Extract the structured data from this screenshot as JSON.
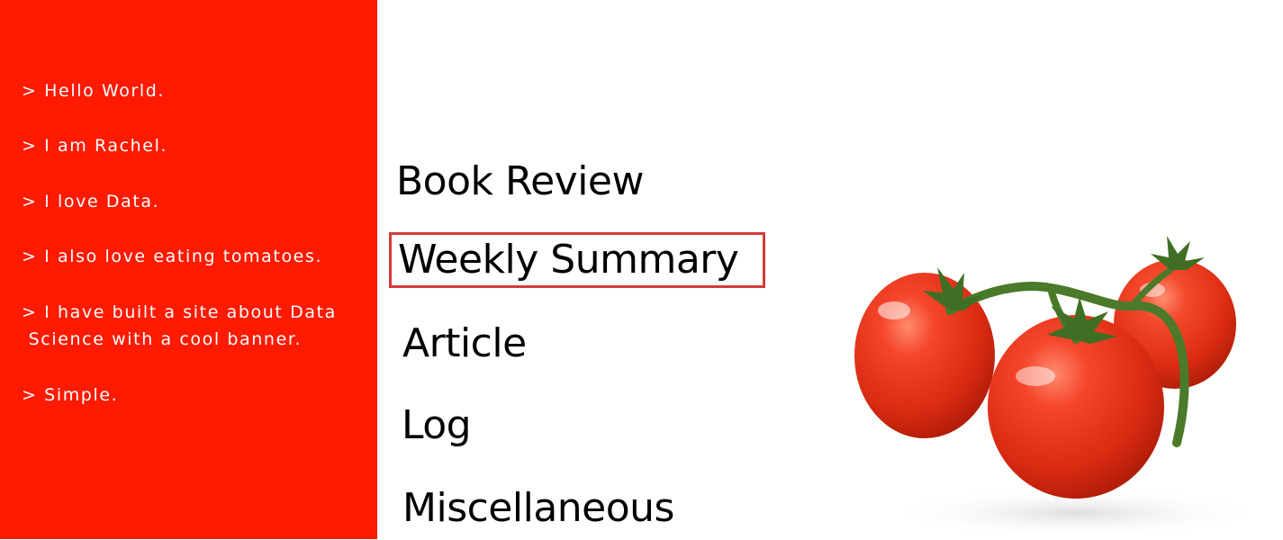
{
  "intro": {
    "lines": [
      "> Hello World.",
      "> I am Rachel.",
      "> I love Data.",
      "> I also love eating tomatoes.",
      "> I have built a site about Data\n Science with a cool banner.",
      "> Simple."
    ]
  },
  "nav": {
    "items": [
      {
        "label": "Book Review"
      },
      {
        "label": "Weekly Summary"
      },
      {
        "label": "Article"
      },
      {
        "label": "Log"
      },
      {
        "label": "Miscellaneous"
      }
    ],
    "highlighted_index": 1
  },
  "image": {
    "icon": "tomatoes-on-vine-image"
  },
  "colors": {
    "panel_red": "#ff1a00",
    "highlight_border": "#d63a3a",
    "tomato_red": "#e8321b",
    "vine_green": "#4a7a2a"
  }
}
